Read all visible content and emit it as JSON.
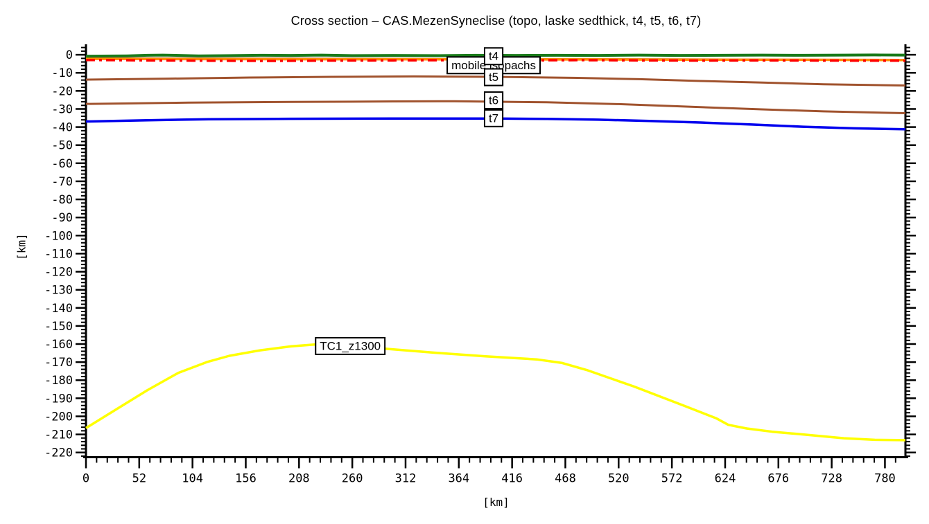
{
  "title": "Cross section – CAS.MezenSyneclise (topo, laske sedthick, t4, t5, t6, t7)",
  "chart_data": {
    "type": "line",
    "title": "Cross section – CAS.MezenSyneclise (topo, laske sedthick, t4, t5, t6, t7)",
    "xlabel": "[km]",
    "ylabel": "[km]",
    "xlim": [
      0,
      800
    ],
    "ylim": [
      -222.6,
      5.4
    ],
    "grid": false,
    "x_major_ticks": [
      0,
      52,
      104,
      156,
      208,
      260,
      312,
      364,
      416,
      468,
      520,
      572,
      624,
      676,
      728,
      780
    ],
    "x_minor_step": 10.4,
    "y_major_ticks": [
      0,
      -10,
      -20,
      -30,
      -40,
      -50,
      -60,
      -70,
      -80,
      -90,
      -100,
      -110,
      -120,
      -130,
      -140,
      -150,
      -160,
      -170,
      -180,
      -190,
      -200,
      -210,
      -220
    ],
    "y_minor_step": 2,
    "axis_color": "#000000",
    "series": [
      {
        "name": "t5",
        "color": "#a0522d",
        "style": "solid",
        "width": 3,
        "x": [
          0,
          80,
          160,
          240,
          320,
          400,
          480,
          540,
          600,
          660,
          720,
          800
        ],
        "y": [
          -13.8,
          -13.2,
          -12.6,
          -12.2,
          -12.0,
          -12.2,
          -12.8,
          -13.5,
          -14.5,
          -15.4,
          -16.3,
          -17.0
        ]
      },
      {
        "name": "t6",
        "color": "#a0522d",
        "style": "solid",
        "width": 3,
        "x": [
          0,
          100,
          200,
          300,
          360,
          450,
          520,
          600,
          660,
          720,
          800
        ],
        "y": [
          -27.2,
          -26.5,
          -26.1,
          -25.8,
          -25.7,
          -26.3,
          -27.3,
          -29.0,
          -30.2,
          -31.3,
          -32.3
        ]
      },
      {
        "name": "t7",
        "color": "#0000ee",
        "style": "solid",
        "width": 3.5,
        "x": [
          0,
          60,
          120,
          200,
          300,
          400,
          450,
          500,
          550,
          600,
          650,
          700,
          750,
          800
        ],
        "y": [
          -36.9,
          -36.2,
          -35.7,
          -35.4,
          -35.3,
          -35.3,
          -35.5,
          -35.9,
          -36.6,
          -37.5,
          -38.6,
          -39.8,
          -40.7,
          -41.2
        ]
      },
      {
        "name": "TC1_z1300",
        "color": "#ffff00",
        "style": "solid",
        "width": 3.5,
        "x": [
          0,
          30,
          60,
          90,
          118,
          140,
          170,
          200,
          225,
          260,
          295,
          340,
          390,
          440,
          465,
          490,
          535,
          585,
          615,
          627,
          645,
          670,
          700,
          740,
          770,
          800
        ],
        "y": [
          -206.5,
          -196.0,
          -185.5,
          -176.0,
          -170.0,
          -166.5,
          -163.5,
          -161.3,
          -160.2,
          -161.0,
          -162.7,
          -164.8,
          -166.8,
          -168.5,
          -170.5,
          -174.6,
          -183.5,
          -194.4,
          -201.0,
          -204.7,
          -206.7,
          -208.5,
          -210.0,
          -212.1,
          -213.0,
          -213.2
        ]
      },
      {
        "name": "t4",
        "color": "#a0522d",
        "style": "solid",
        "width": 3,
        "x": [
          0,
          100,
          200,
          300,
          400,
          500,
          600,
          700,
          800
        ],
        "y": [
          -2.0,
          -2.1,
          -2.2,
          -2.3,
          -2.4,
          -2.5,
          -2.6,
          -2.8,
          -3.0
        ]
      },
      {
        "name": "laske sedthick",
        "color": "#ff8c00",
        "style": "solid",
        "width": 3.5,
        "x": [
          0,
          100,
          200,
          300,
          400,
          500,
          600,
          700,
          800
        ],
        "y": [
          -2.3,
          -2.4,
          -2.5,
          -2.5,
          -2.6,
          -2.6,
          -2.7,
          -2.8,
          -2.9
        ]
      },
      {
        "name": "mobile isopachs",
        "color": "#ff0000",
        "style": "dashdot",
        "width": 3.5,
        "x": [
          0,
          60,
          120,
          180,
          240,
          300,
          360,
          420,
          480,
          540,
          600,
          660,
          720,
          800
        ],
        "y": [
          -2.9,
          -3.1,
          -3.3,
          -3.4,
          -3.2,
          -3.1,
          -3.0,
          -3.1,
          -3.0,
          -3.1,
          -3.2,
          -3.1,
          -3.2,
          -3.3
        ]
      },
      {
        "name": "topo",
        "color": "#1a7a1a",
        "style": "solid",
        "width": 4,
        "x": [
          0,
          40,
          60,
          75,
          110,
          140,
          170,
          200,
          230,
          260,
          300,
          340,
          380,
          420,
          460,
          500,
          540,
          580,
          620,
          660,
          700,
          740,
          770,
          800
        ],
        "y": [
          -0.8,
          -0.6,
          -0.3,
          -0.2,
          -0.6,
          -0.5,
          -0.3,
          -0.4,
          -0.2,
          -0.5,
          -0.4,
          -0.5,
          -0.3,
          -0.4,
          -0.3,
          -0.4,
          -0.2,
          -0.4,
          -0.3,
          -0.2,
          -0.3,
          -0.2,
          -0.1,
          -0.2
        ]
      }
    ],
    "labels": [
      {
        "text": "mobile isopachs",
        "x": 398,
        "y": -6.2
      },
      {
        "text": "t4",
        "x": 398,
        "y": -1.2
      },
      {
        "text": "t5",
        "x": 398,
        "y": -12.8
      },
      {
        "text": "t6",
        "x": 398,
        "y": -25.6
      },
      {
        "text": "t7",
        "x": 398,
        "y": -35.5
      },
      {
        "text": "TC1_z1300",
        "x": 258,
        "y": -161.5
      }
    ]
  }
}
